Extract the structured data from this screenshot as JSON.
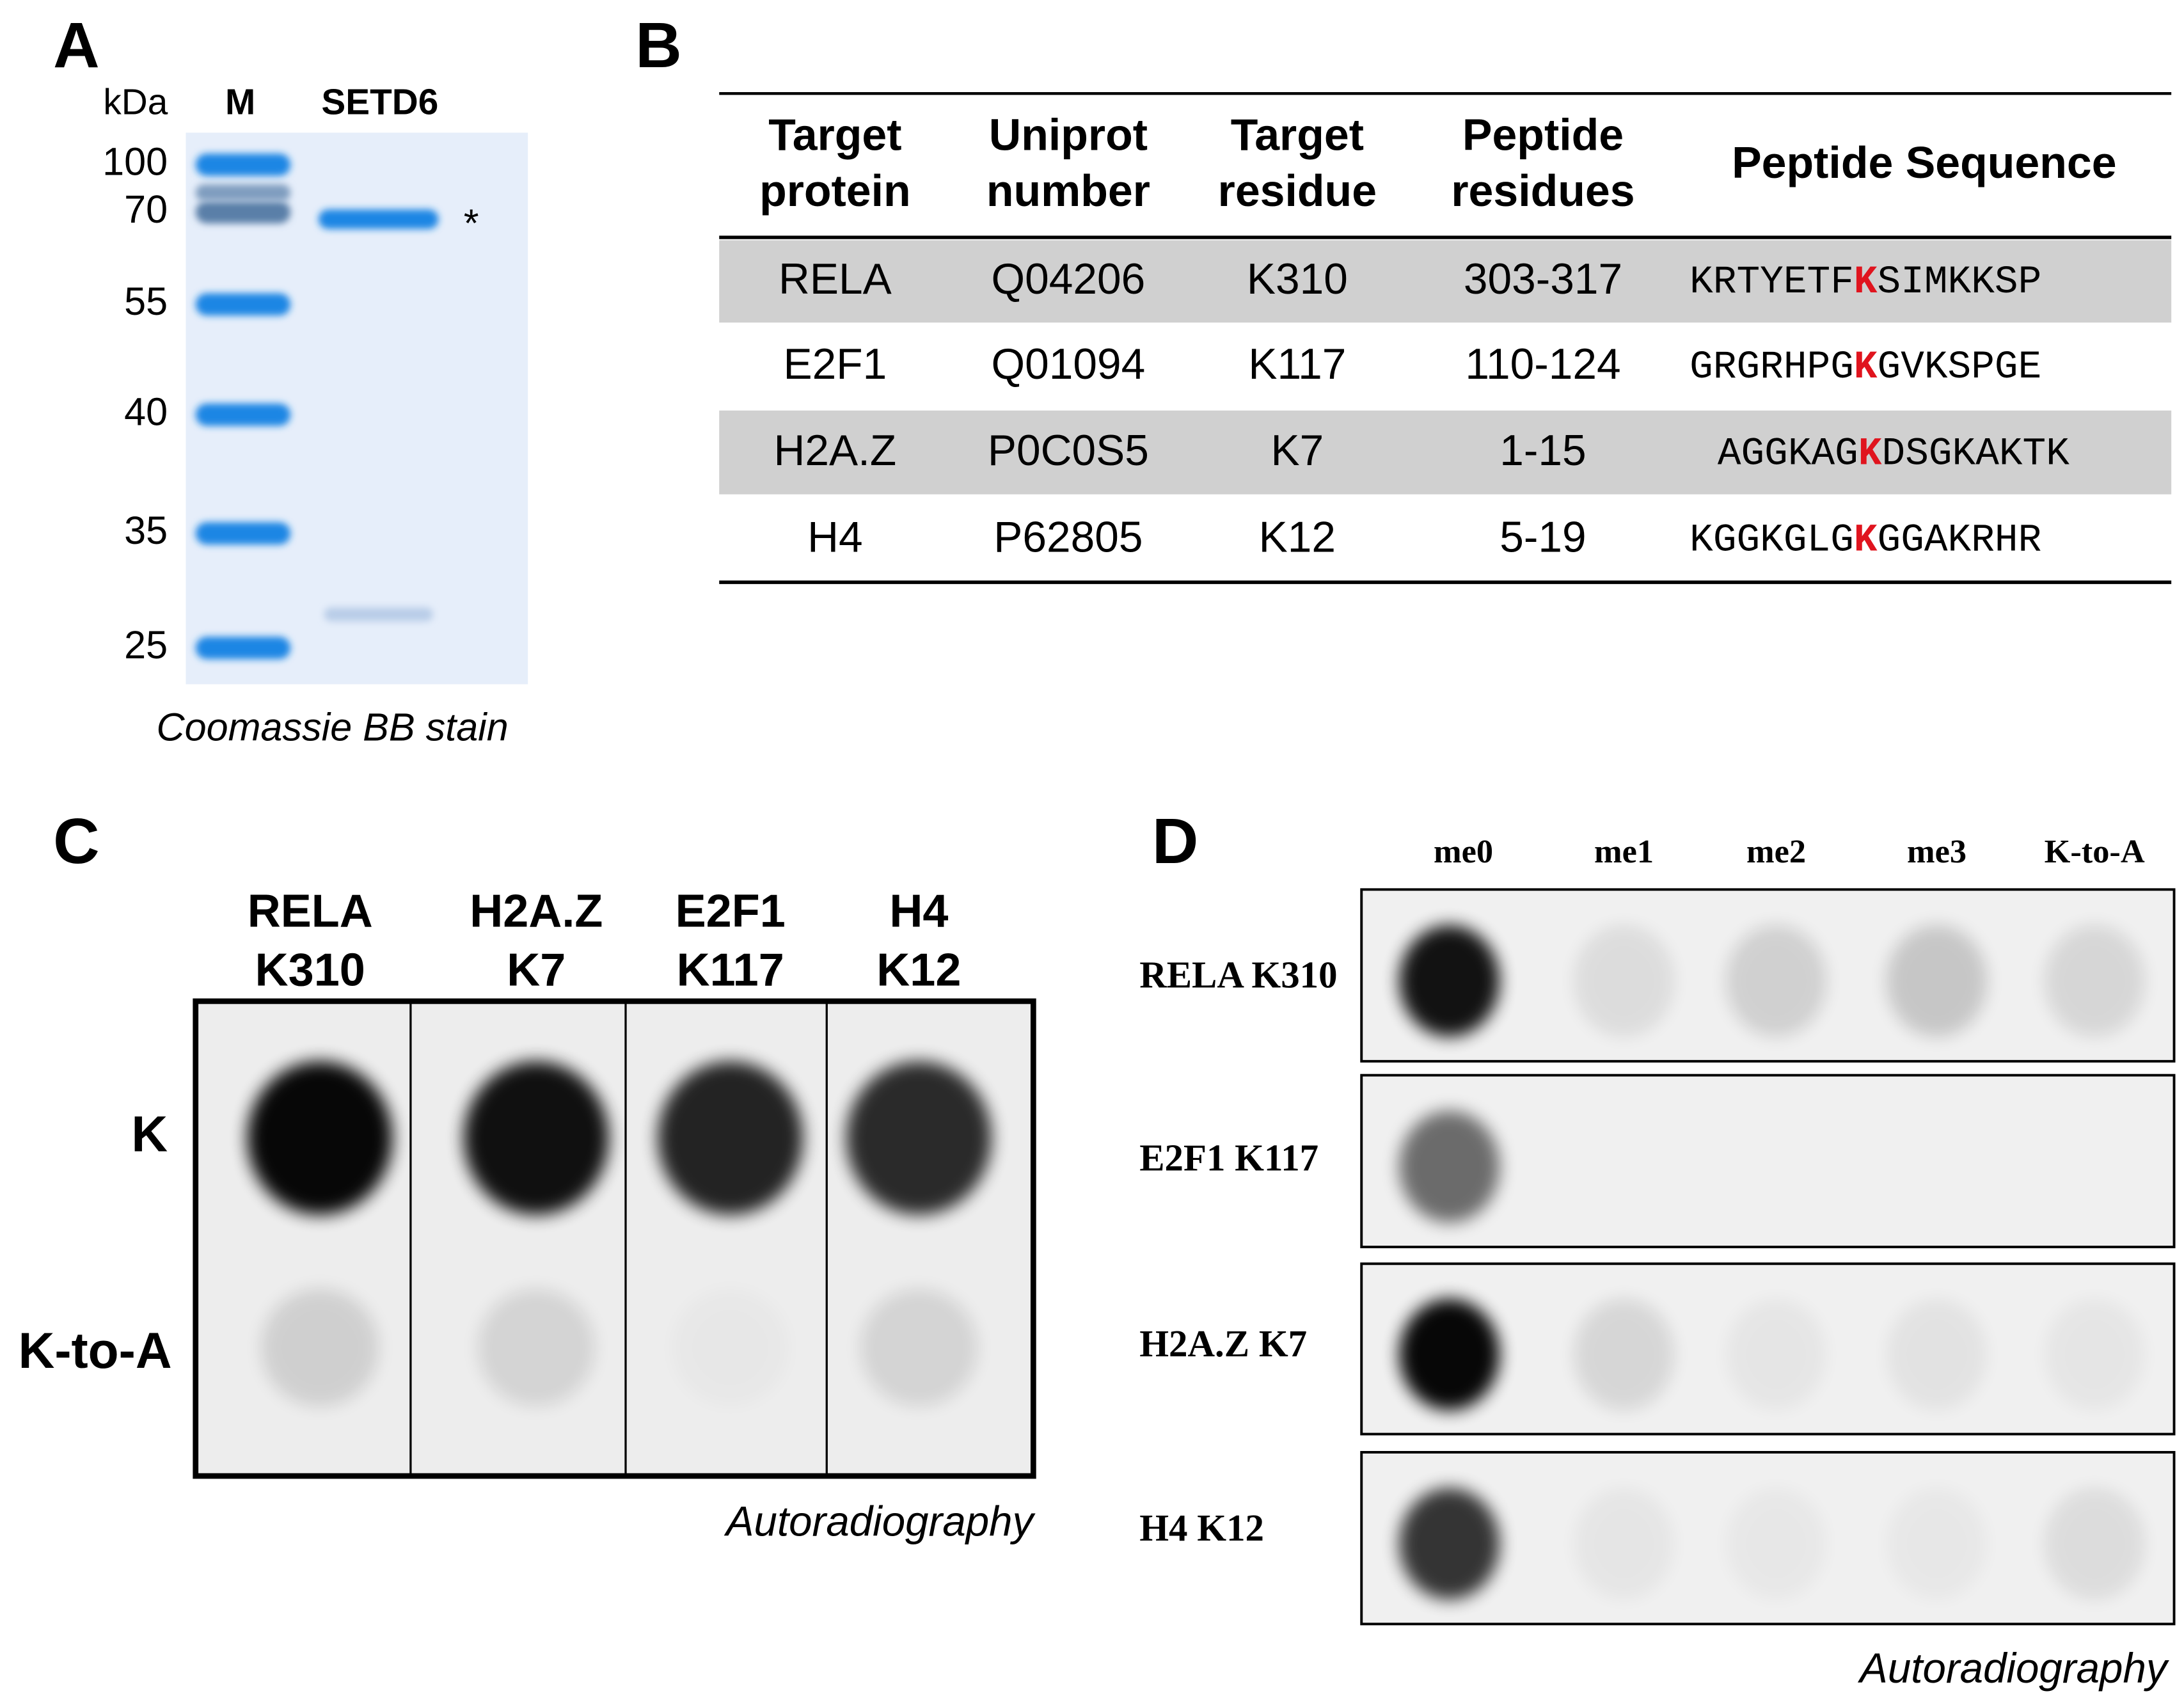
{
  "panel_a": {
    "label": "A",
    "unit": "kDa",
    "lanes": [
      "M",
      "SETD6"
    ],
    "markers": [
      100,
      70,
      55,
      40,
      35,
      25
    ],
    "band_marker": "*",
    "caption": "Coomassie BB stain"
  },
  "panel_b": {
    "label": "B",
    "table": {
      "header": [
        [
          "Target",
          "protein"
        ],
        [
          "Uniprot",
          "number"
        ],
        [
          "Target",
          "residue"
        ],
        [
          "Peptide",
          "residues"
        ],
        [
          "Peptide Sequence"
        ]
      ],
      "rows": [
        [
          "RELA",
          "Q04206",
          "K310",
          "303-317",
          {
            "before": "KRTYETF",
            "highlight": "K",
            "after": "SIMKKSP"
          }
        ],
        [
          "E2F1",
          "Q01094",
          "K117",
          "110-124",
          {
            "before": "GRGRHPG",
            "highlight": "K",
            "after": "GVKSPGE"
          }
        ],
        [
          "H2A.Z",
          "P0C0S5",
          "K7",
          "1-15",
          {
            "before": "AGGKAG",
            "highlight": "K",
            "after": "DSGKAKTK"
          }
        ],
        [
          "H4",
          "P62805",
          "K12",
          "5-19",
          {
            "before": "KGGKGLG",
            "highlight": "K",
            "after": "GGAKRHR"
          }
        ]
      ]
    }
  },
  "panel_c": {
    "label": "C",
    "columns": [
      [
        "RELA",
        "K310"
      ],
      [
        "H2A.Z",
        "K7"
      ],
      [
        "E2F1",
        "K117"
      ],
      [
        "H4",
        "K12"
      ]
    ],
    "rows": [
      "K",
      "K-to-A"
    ],
    "caption": "Autoradiography"
  },
  "panel_d": {
    "label": "D",
    "columns": [
      "me0",
      "me1",
      "me2",
      "me3",
      "K-to-A"
    ],
    "rows": [
      "RELA K310",
      "E2F1 K117",
      "H2A.Z K7",
      "H4 K12"
    ],
    "caption": "Autoradiography"
  }
}
